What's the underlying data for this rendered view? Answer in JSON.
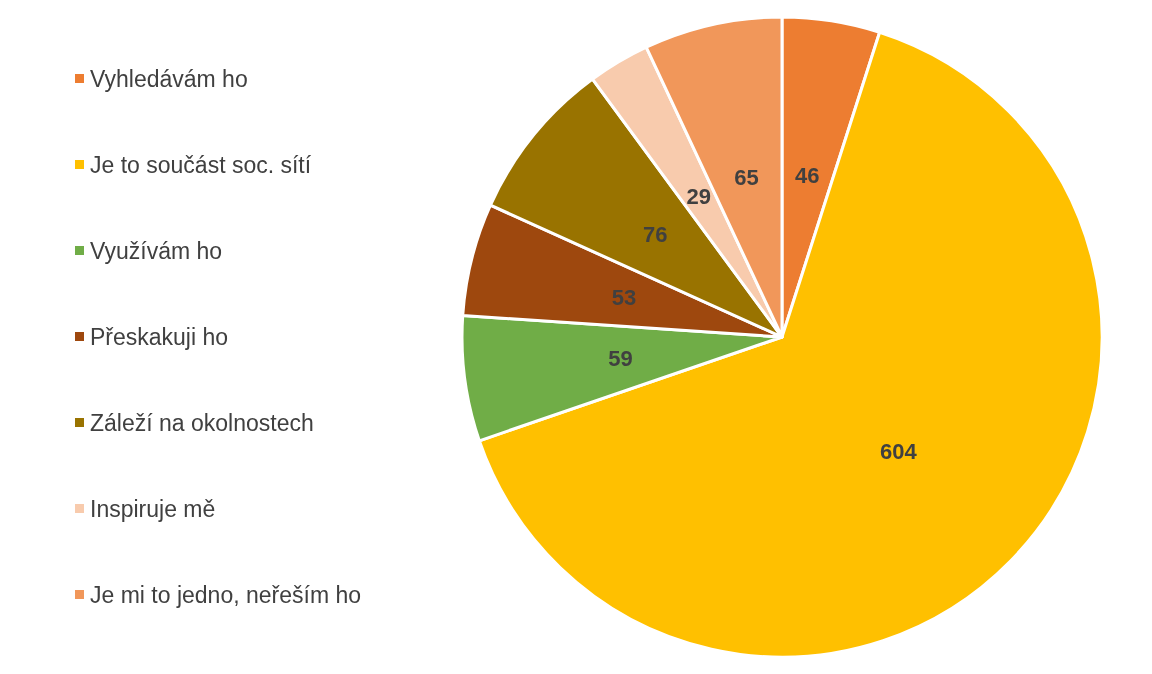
{
  "chart_data": {
    "type": "pie",
    "categories": [
      "Vyhledávám ho",
      "Je to součást soc. sítí",
      "Využívám ho",
      "Přeskakuji ho",
      "Záleží na okolnostech",
      "Inspiruje mě",
      "Je mi to jedno, neřeším ho"
    ],
    "values": [
      46,
      604,
      59,
      53,
      76,
      29,
      65
    ],
    "colors": [
      "#ed7d31",
      "#ffc000",
      "#70ad47",
      "#9e480e",
      "#997300",
      "#f8cbad",
      "#f1975a"
    ],
    "data_labels": true,
    "legend": "left"
  }
}
